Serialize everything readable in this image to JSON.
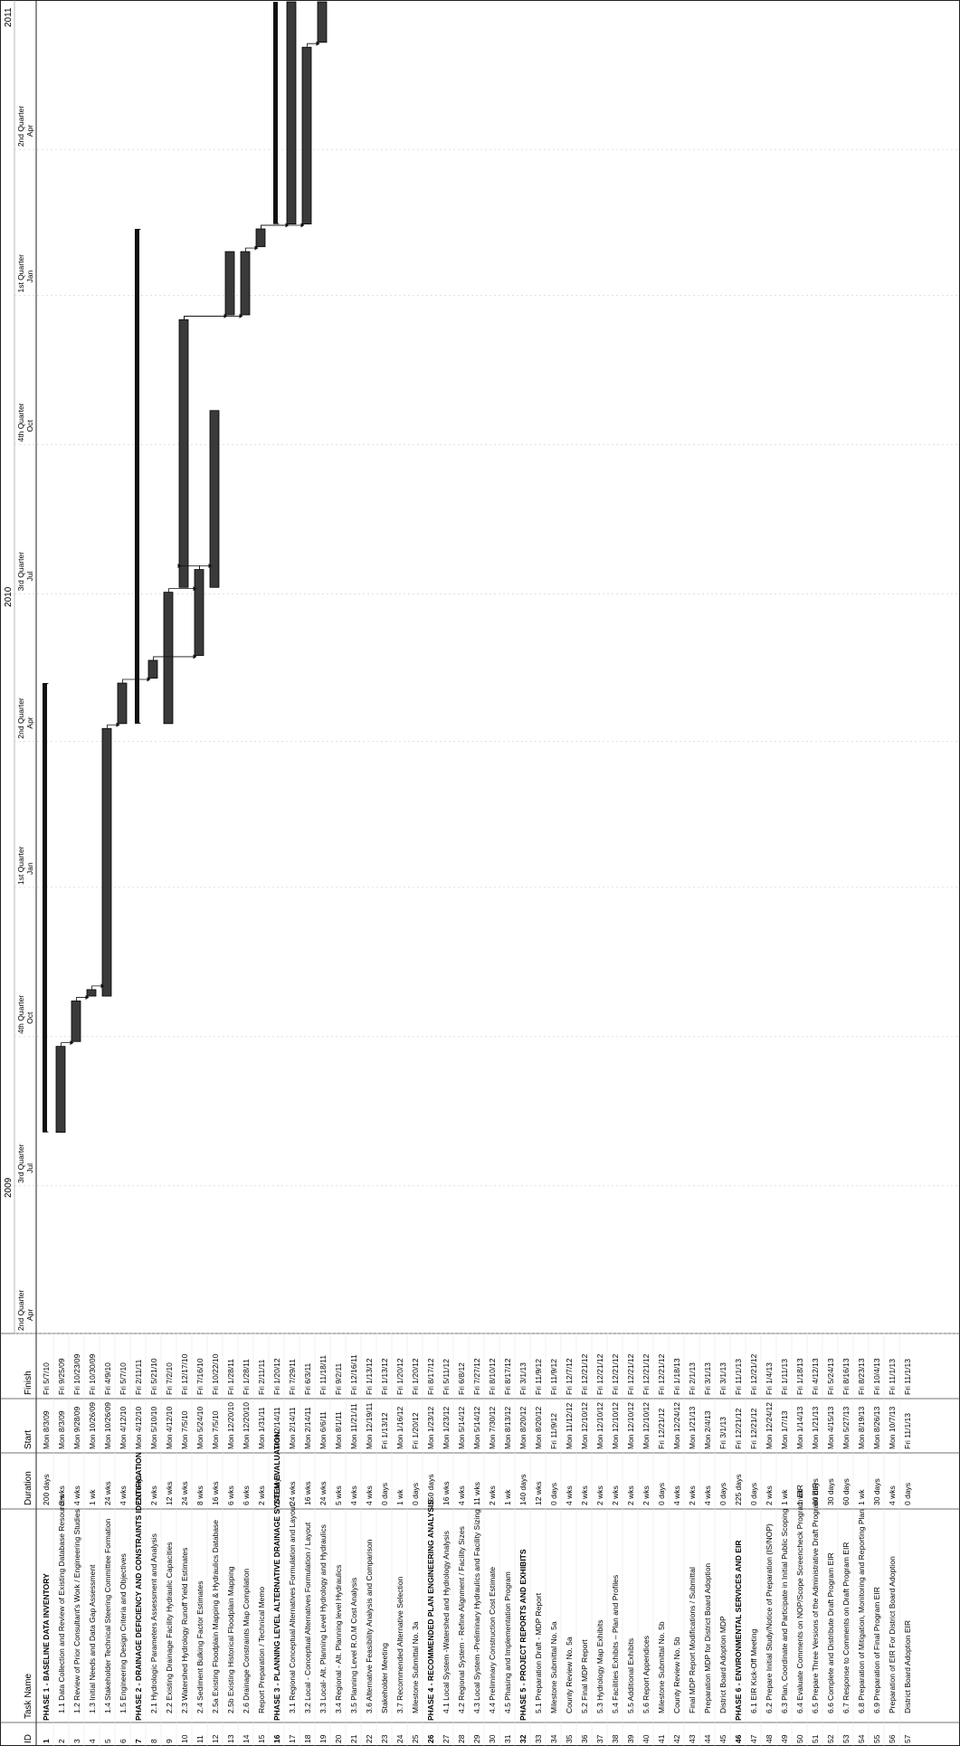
{
  "chart_data": {
    "type": "gantt",
    "columns": [
      "ID",
      "Task Name",
      "Duration",
      "Start",
      "Finish"
    ],
    "timeline": {
      "years": [
        "2009",
        "2010",
        "2011"
      ],
      "quarters": [
        {
          "q": "2nd Quarter",
          "m": "Apr"
        },
        {
          "q": "3rd Quarter",
          "m": "Jul"
        },
        {
          "q": "4th Quarter",
          "m": "Oct"
        },
        {
          "q": "1st Quarter",
          "m": "Jan"
        },
        {
          "q": "2nd Quarter",
          "m": "Apr"
        },
        {
          "q": "3rd Quarter",
          "m": "Jul"
        },
        {
          "q": "4th Quarter",
          "m": "Oct"
        },
        {
          "q": "1st Quarter",
          "m": "Jan"
        },
        {
          "q": "2nd Quarter",
          "m": "Apr"
        }
      ],
      "range": [
        "2009-04-01",
        "2011-07-01"
      ]
    },
    "tasks": [
      {
        "id": "1",
        "name": "PHASE 1 - BASELINE DATA INVENTORY",
        "duration": "200 days",
        "start": "Mon 8/3/09",
        "finish": "Fri 5/7/10",
        "phase": true,
        "s": "2009-08-03",
        "f": "2010-05-07"
      },
      {
        "id": "2",
        "name": "1.1 Data Collection and Review of Existing Database Resources",
        "duration": "8 wks",
        "start": "Mon 8/3/09",
        "finish": "Fri 9/25/09",
        "s": "2009-08-03",
        "f": "2009-09-25"
      },
      {
        "id": "3",
        "name": "1.2 Review of Prior Consultant's Work / Engineering Studies",
        "duration": "4 wks",
        "start": "Mon 9/28/09",
        "finish": "Fri 10/23/09",
        "s": "2009-09-28",
        "f": "2009-10-23"
      },
      {
        "id": "4",
        "name": "1.3 Initial Needs and Data Gap Assessment",
        "duration": "1 wk",
        "start": "Mon 10/26/09",
        "finish": "Fri 10/30/09",
        "s": "2009-10-26",
        "f": "2009-10-30"
      },
      {
        "id": "5",
        "name": "1.4 Stakeholder Technical Steering Committee Formation",
        "duration": "24 wks",
        "start": "Mon 10/26/09",
        "finish": "Fri 4/9/10",
        "s": "2009-10-26",
        "f": "2010-04-09"
      },
      {
        "id": "6",
        "name": "1.5 Engineering Design Criteria and Objectives",
        "duration": "4 wks",
        "start": "Mon 4/12/10",
        "finish": "Fri 5/7/10",
        "s": "2010-04-12",
        "f": "2010-05-07"
      },
      {
        "id": "7",
        "name": "PHASE 2 - DRAINAGE DEFICIENCY AND CONSTRAINTS IDENTIFICATION",
        "duration": "220 days",
        "start": "Mon 4/12/10",
        "finish": "Fri 2/11/11",
        "phase": true,
        "s": "2010-04-12",
        "f": "2011-02-11"
      },
      {
        "id": "8",
        "name": "2.1 Hydrologic Parameters Assessment and Analysis",
        "duration": "2 wks",
        "start": "Mon 5/10/10",
        "finish": "Fri 5/21/10",
        "s": "2010-05-10",
        "f": "2010-05-21"
      },
      {
        "id": "9",
        "name": "2.2 Existing Drainage Facility Hydraulic Capacities",
        "duration": "12 wks",
        "start": "Mon 4/12/10",
        "finish": "Fri 7/2/10",
        "s": "2010-04-12",
        "f": "2010-07-02"
      },
      {
        "id": "10",
        "name": "2.3 Watershed Hydrology Runoff Yield Estimates",
        "duration": "24 wks",
        "start": "Mon 7/5/10",
        "finish": "Fri 12/17/10",
        "s": "2010-07-05",
        "f": "2010-12-17"
      },
      {
        "id": "11",
        "name": "2.4 Sediment Bulking Factor Estimates",
        "duration": "8 wks",
        "start": "Mon 5/24/10",
        "finish": "Fri 7/16/10",
        "s": "2010-05-24",
        "f": "2010-07-16"
      },
      {
        "id": "12",
        "name": "2.5a Existing Floodplain Mapping & Hydraulics Database",
        "duration": "16 wks",
        "start": "Mon 7/5/10",
        "finish": "Fri 10/22/10",
        "s": "2010-07-05",
        "f": "2010-10-22"
      },
      {
        "id": "13",
        "name": "2.5b Existing Historical Floodplain Mapping",
        "duration": "6 wks",
        "start": "Mon 12/20/10",
        "finish": "Fri 1/28/11",
        "s": "2010-12-20",
        "f": "2011-01-28"
      },
      {
        "id": "14",
        "name": "2.6 Drainage Constraints Map Compilation",
        "duration": "6 wks",
        "start": "Mon 12/20/10",
        "finish": "Fri 1/28/11",
        "s": "2010-12-20",
        "f": "2011-01-28"
      },
      {
        "id": "15",
        "name": "Report Preparation / Technical Memo",
        "duration": "2 wks",
        "start": "Mon 1/31/11",
        "finish": "Fri 2/11/11",
        "s": "2011-01-31",
        "f": "2011-02-11"
      },
      {
        "id": "16",
        "name": "PHASE 3 - PLANNING LEVEL ALTERNATIVE DRAINAGE SYSTEM EVALUATION",
        "duration": "245 days",
        "start": "Mon 2/14/11",
        "finish": "Fri 1/20/12",
        "phase": true,
        "s": "2011-02-14",
        "f": "2011-07-01"
      },
      {
        "id": "17",
        "name": "3.1 Regional Conceptual Alternatives Formulation and Layout",
        "duration": "24 wks",
        "start": "Mon 2/14/11",
        "finish": "Fri 7/29/11",
        "s": "2011-02-14",
        "f": "2011-07-01"
      },
      {
        "id": "18",
        "name": "3.2 Local - Conceptual Alternatives Formulation / Layout",
        "duration": "16 wks",
        "start": "Mon 2/14/11",
        "finish": "Fri 6/3/11",
        "s": "2011-02-14",
        "f": "2011-06-03"
      },
      {
        "id": "19",
        "name": "3.3 Local- Alt. Planning Level Hydrology and Hydraulics",
        "duration": "24 wks",
        "start": "Mon 6/6/11",
        "finish": "Fri 11/18/11",
        "s": "2011-06-06",
        "f": "2011-07-01"
      },
      {
        "id": "20",
        "name": "3.4 Regional - Alt. Planning level Hydraulics",
        "duration": "5 wks",
        "start": "Mon 8/1/11",
        "finish": "Fri 9/2/11"
      },
      {
        "id": "21",
        "name": "3.5 Planning Level R.O.M Cost Analysis",
        "duration": "4 wks",
        "start": "Mon 11/21/11",
        "finish": "Fri 12/16/11"
      },
      {
        "id": "22",
        "name": "3.6 Alternative Feasibility Analysis and Comparison",
        "duration": "4 wks",
        "start": "Mon 12/19/11",
        "finish": "Fri 1/13/12"
      },
      {
        "id": "23",
        "name": "Stakeholder Meeting",
        "duration": "0 days",
        "start": "Fri 1/13/12",
        "finish": "Fri 1/13/12"
      },
      {
        "id": "24",
        "name": "3.7 Recommended Alternative Selection",
        "duration": "1 wk",
        "start": "Mon 1/16/12",
        "finish": "Fri 1/20/12"
      },
      {
        "id": "25",
        "name": "Milestone Submittal No. 3a",
        "duration": "0 days",
        "start": "Fri 1/20/12",
        "finish": "Fri 1/20/12"
      },
      {
        "id": "26",
        "name": "PHASE 4 - RECOMMENDED PLAN ENGINEERING ANALYSIS",
        "duration": "150 days",
        "start": "Mon 1/23/12",
        "finish": "Fri 8/17/12",
        "phase": true
      },
      {
        "id": "27",
        "name": "4.1 Local System -Watershed and Hydrology Analysis",
        "duration": "16 wks",
        "start": "Mon 1/23/12",
        "finish": "Fri 5/11/12"
      },
      {
        "id": "28",
        "name": "4.2 Regional System - Refine Alignment / Facility Sizes",
        "duration": "4 wks",
        "start": "Mon 5/14/12",
        "finish": "Fri 6/8/12"
      },
      {
        "id": "29",
        "name": "4.3 Local System -Preliminary Hydraulics and Facility Sizing",
        "duration": "11 wks",
        "start": "Mon 5/14/12",
        "finish": "Fri 7/27/12"
      },
      {
        "id": "30",
        "name": "4.4 Preliminary Construction Cost Estimate",
        "duration": "2 wks",
        "start": "Mon 7/30/12",
        "finish": "Fri 8/10/12"
      },
      {
        "id": "31",
        "name": "4.5 Phasing and Implementation Program",
        "duration": "1 wk",
        "start": "Mon 8/13/12",
        "finish": "Fri 8/17/12"
      },
      {
        "id": "32",
        "name": "PHASE 5 - PROJECT REPORTS AND EXHIBITS",
        "duration": "140 days",
        "start": "Mon 8/20/12",
        "finish": "Fri 3/1/13",
        "phase": true
      },
      {
        "id": "33",
        "name": "5.1 Preparation Draft - MDP Report",
        "duration": "12 wks",
        "start": "Mon 8/20/12",
        "finish": "Fri 11/9/12"
      },
      {
        "id": "34",
        "name": "Milestone Submittal No. 5a",
        "duration": "0 days",
        "start": "Fri 11/9/12",
        "finish": "Fri 11/9/12"
      },
      {
        "id": "35",
        "name": "County Review No. 5a",
        "duration": "4 wks",
        "start": "Mon 11/12/12",
        "finish": "Fri 12/7/12"
      },
      {
        "id": "36",
        "name": "5.2 Final MDP Report",
        "duration": "2 wks",
        "start": "Mon 12/10/12",
        "finish": "Fri 12/21/12"
      },
      {
        "id": "37",
        "name": "5.3 Hydrology Map Exhibits",
        "duration": "2 wks",
        "start": "Mon 12/10/12",
        "finish": "Fri 12/21/12"
      },
      {
        "id": "38",
        "name": "5.4 Facilities Exhibits – Plan and Profiles",
        "duration": "2 wks",
        "start": "Mon 12/10/12",
        "finish": "Fri 12/21/12"
      },
      {
        "id": "39",
        "name": "5.5 Additional Exhibits",
        "duration": "2 wks",
        "start": "Mon 12/10/12",
        "finish": "Fri 12/21/12"
      },
      {
        "id": "40",
        "name": "5.6 Report Appendices",
        "duration": "2 wks",
        "start": "Mon 12/10/12",
        "finish": "Fri 12/21/12"
      },
      {
        "id": "41",
        "name": "Milestone Submittal No. 5b",
        "duration": "0 days",
        "start": "Fri 12/21/12",
        "finish": "Fri 12/21/12"
      },
      {
        "id": "42",
        "name": "County Review No. 5b",
        "duration": "4 wks",
        "start": "Mon 12/24/12",
        "finish": "Fri 1/18/13"
      },
      {
        "id": "43",
        "name": "Final MDP Report Modifications / Submittal",
        "duration": "2 wks",
        "start": "Mon 1/21/13",
        "finish": "Fri 2/1/13"
      },
      {
        "id": "44",
        "name": "Preparation MDP for District Board Adoption",
        "duration": "4 wks",
        "start": "Mon 2/4/13",
        "finish": "Fri 3/1/13"
      },
      {
        "id": "45",
        "name": "District Board Adoption MDP",
        "duration": "0 days",
        "start": "Fri 3/1/13",
        "finish": "Fri 3/1/13"
      },
      {
        "id": "46",
        "name": "PHASE 6 - ENVIRONMENTAL SERVICES AND EIR",
        "duration": "225 days",
        "start": "Fri 12/21/12",
        "finish": "Fri 11/1/13",
        "phase": true
      },
      {
        "id": "47",
        "name": "6.1 EIR Kick-Off Meeting",
        "duration": "0 days",
        "start": "Fri 12/21/12",
        "finish": "Fri 12/21/12"
      },
      {
        "id": "48",
        "name": "6.2 Prepare Initial Study/Notice of Preparation (IS/NOP)",
        "duration": "2 wks",
        "start": "Mon 12/24/12",
        "finish": "Fri 1/4/13"
      },
      {
        "id": "49",
        "name": "6.3 Plan, Coordinate and Participate in Initial Public Scoping",
        "duration": "1 wk",
        "start": "Mon 1/7/13",
        "finish": "Fri 1/11/13"
      },
      {
        "id": "50",
        "name": "6.4 Evaluate Comments on NOP/Scope Screencheck Program EIR",
        "duration": "1 wk",
        "start": "Mon 1/14/13",
        "finish": "Fri 1/18/13"
      },
      {
        "id": "51",
        "name": "6.5 Prepare Three Versions of the Administrative Draft Program EIR",
        "duration": "60 days",
        "start": "Mon 1/21/13",
        "finish": "Fri 4/12/13"
      },
      {
        "id": "52",
        "name": "6.6 Complete and Distribute Draft Program EIR",
        "duration": "30 days",
        "start": "Mon 4/15/13",
        "finish": "Fri 5/24/13"
      },
      {
        "id": "53",
        "name": "6.7 Response to Comments on Draft Program EIR",
        "duration": "60 days",
        "start": "Mon 5/27/13",
        "finish": "Fri 8/16/13"
      },
      {
        "id": "54",
        "name": "6.8 Preparation of Mitigation, Monitoring and Reporting Plan",
        "duration": "1 wk",
        "start": "Mon 8/19/13",
        "finish": "Fri 8/23/13"
      },
      {
        "id": "55",
        "name": "6.9 Preparation of Final Program EIR",
        "duration": "30 days",
        "start": "Mon 8/26/13",
        "finish": "Fri 10/4/13"
      },
      {
        "id": "56",
        "name": "Preparation of EIR For District Board Adoption",
        "duration": "4 wks",
        "start": "Mon 10/7/13",
        "finish": "Fri 11/1/13"
      },
      {
        "id": "57",
        "name": "District Board Adoption EIR",
        "duration": "0 days",
        "start": "Fri 11/1/13",
        "finish": "Fri 11/1/13"
      }
    ]
  }
}
